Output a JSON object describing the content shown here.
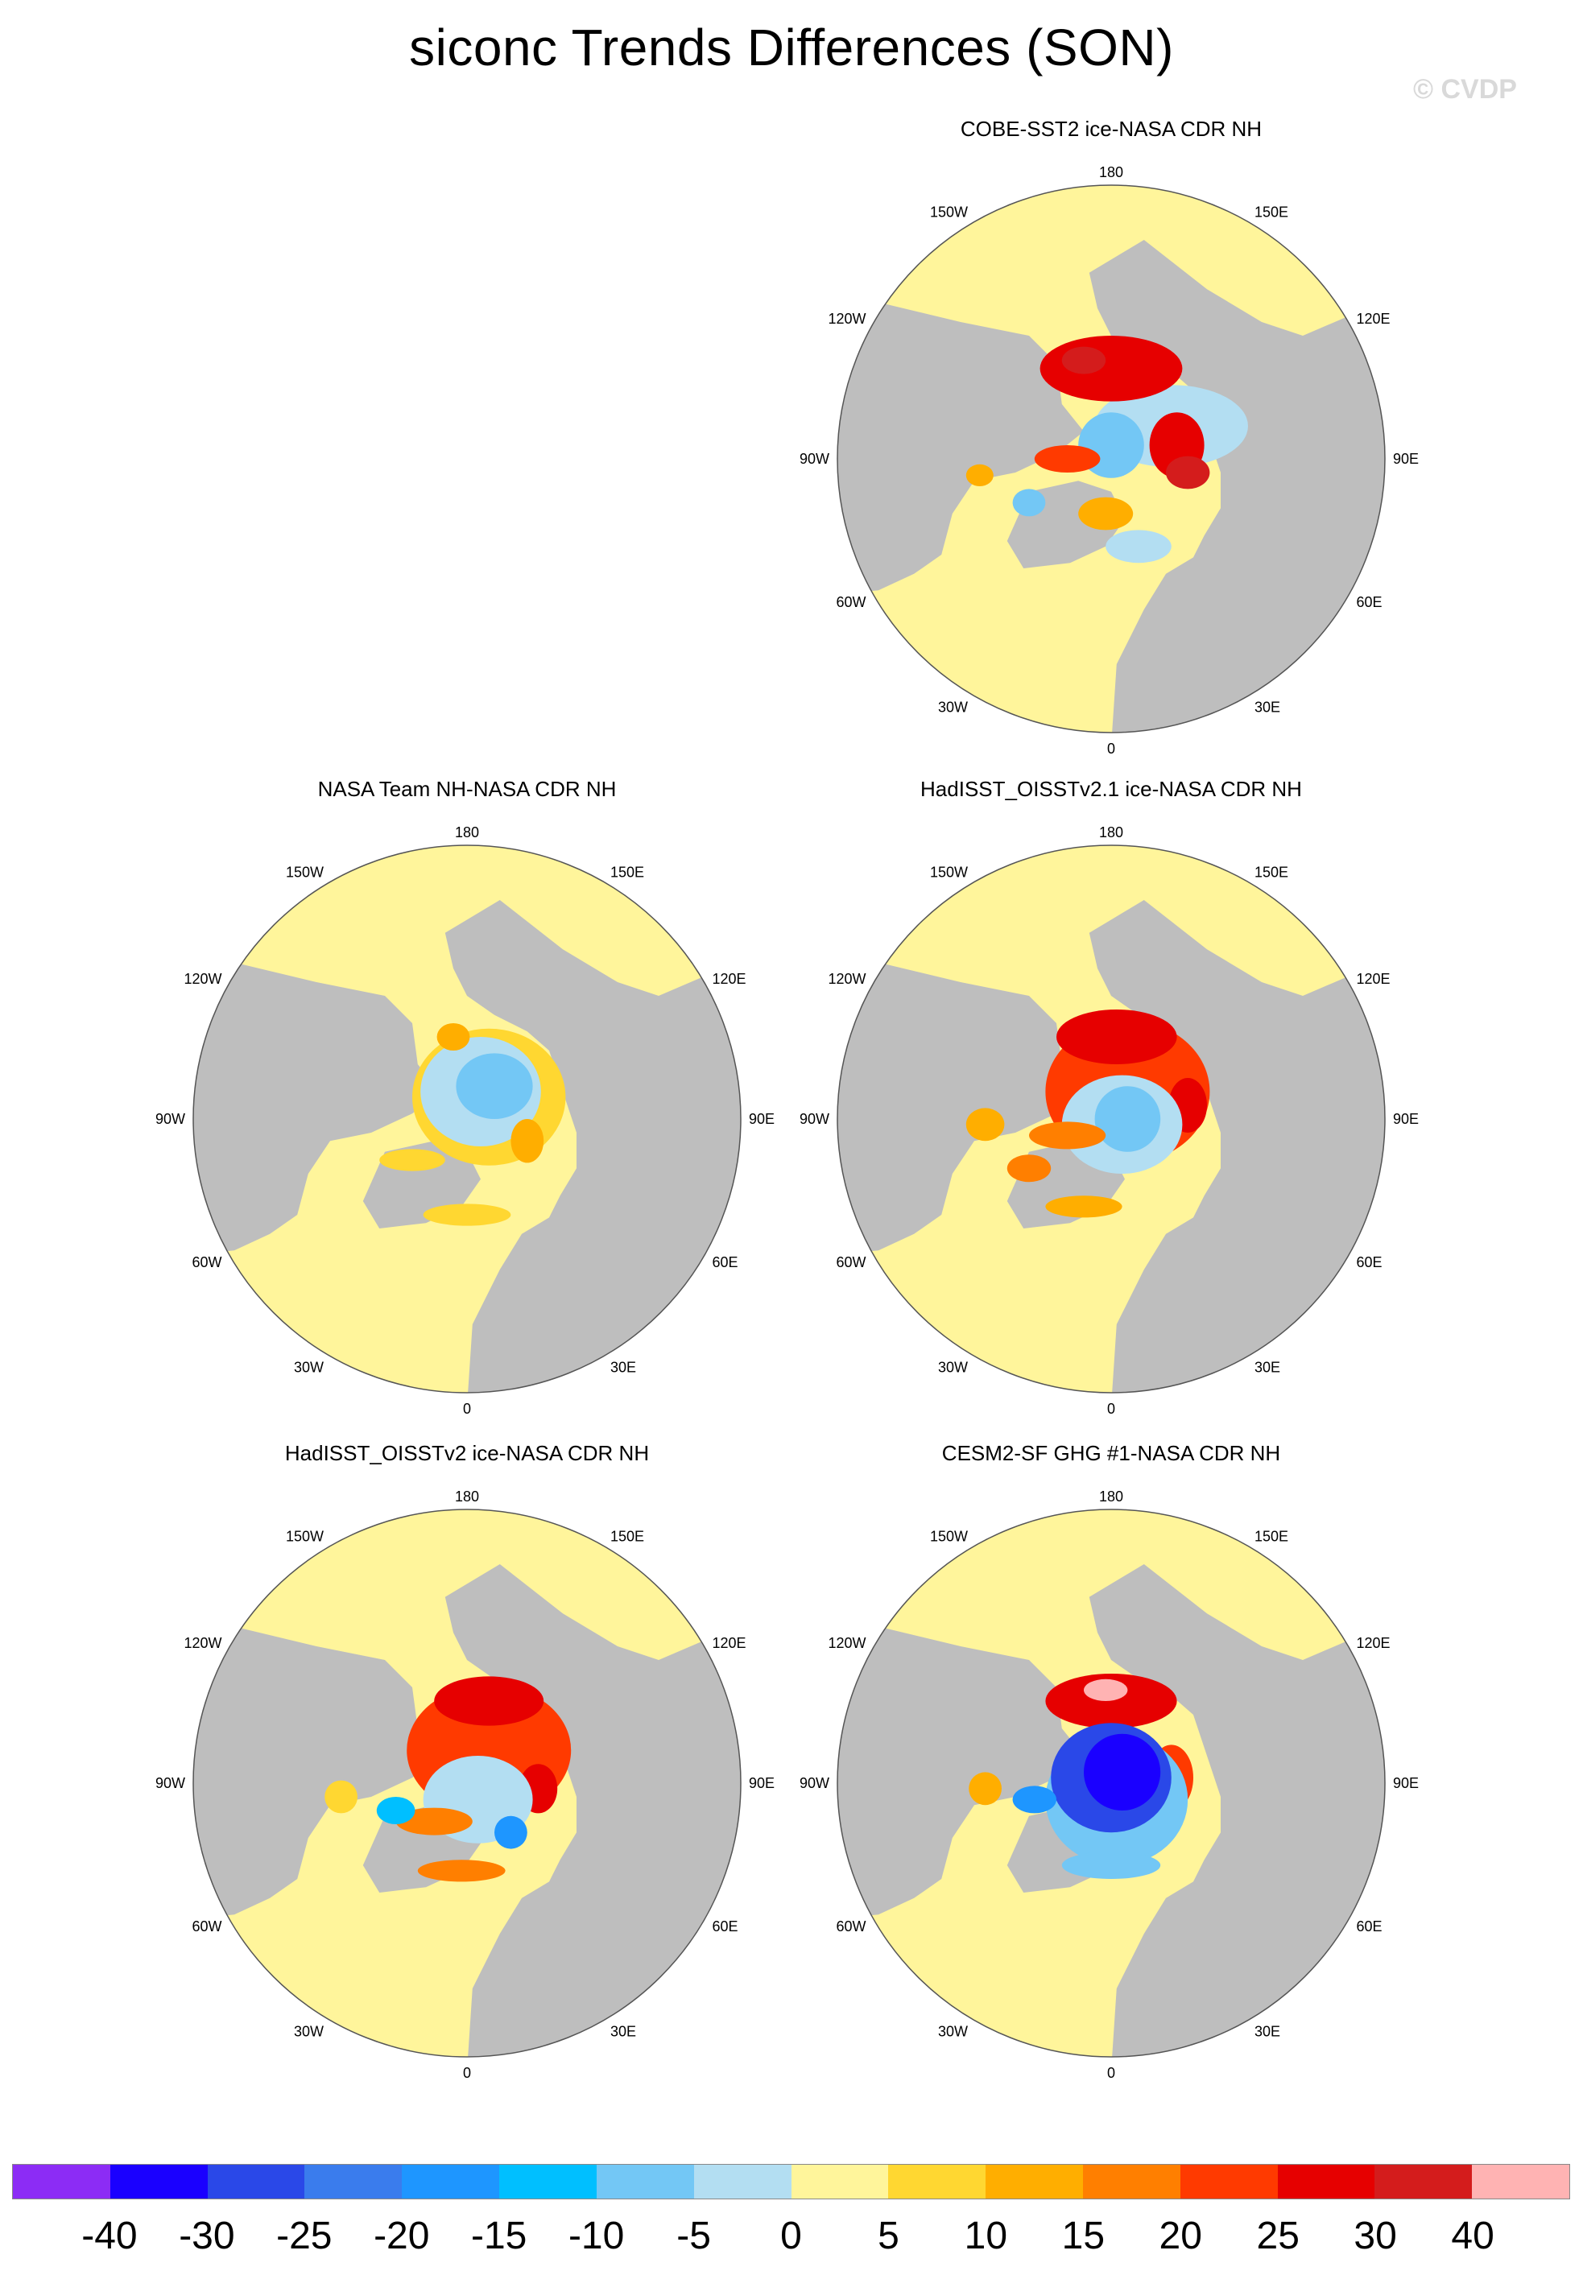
{
  "title": "siconc Trends Differences (SON)",
  "credit": "© CVDP",
  "panels": [
    {
      "title": "COBE-SST2 ice-NASA CDR NH",
      "pattern": "cobe"
    },
    {
      "title": "NASA Team NH-NASA CDR NH",
      "pattern": "team"
    },
    {
      "title": "HadISST_OISSTv2.1 ice-NASA CDR NH",
      "pattern": "had21"
    },
    {
      "title": "HadISST_OISSTv2 ice-NASA CDR NH",
      "pattern": "had2"
    },
    {
      "title": "CESM2-SF GHG #1-NASA CDR NH",
      "pattern": "cesm"
    }
  ],
  "map_labels": {
    "top": "180",
    "bottom": "0",
    "left_mid": "90W",
    "right_mid": "90E",
    "ul": "150W",
    "ur": "150E",
    "ll": "30W",
    "lr": "30E",
    "ml_up": "120W",
    "mr_up": "120E",
    "ml_low": "60W",
    "mr_low": "60E"
  },
  "colorbar": {
    "colors": [
      "#8c2cf5",
      "#1a00ff",
      "#2a48e8",
      "#3a7ced",
      "#1e96ff",
      "#00bfff",
      "#73c7f5",
      "#b3def2",
      "#fff59b",
      "#ffd731",
      "#ffae00",
      "#ff7f00",
      "#ff3a00",
      "#e60000",
      "#d41c1c",
      "#ffb3b3"
    ],
    "ticks": [
      "-40",
      "-30",
      "-25",
      "-20",
      "-15",
      "-10",
      "-5",
      "0",
      "5",
      "10",
      "15",
      "20",
      "25",
      "30",
      "40"
    ]
  },
  "colors": {
    "land": "#bebebe",
    "ocean": "#fff59b",
    "outline": "#555555"
  }
}
